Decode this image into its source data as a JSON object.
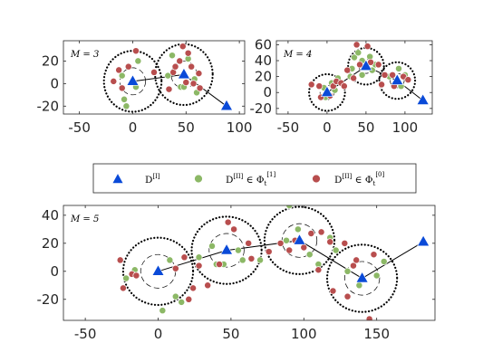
{
  "legend": {
    "items": [
      {
        "marker": "triangle",
        "color": "#0a4ad8",
        "base": "D",
        "sup": "[I]",
        "tail": "",
        "sub": "",
        "tailsup": ""
      },
      {
        "marker": "circle",
        "color": "#8cb866",
        "base": "D",
        "sup": "[II]",
        "tail": " ∈ Φ",
        "sub": "t",
        "tailsup": "[1]"
      },
      {
        "marker": "circle",
        "color": "#b84e4e",
        "base": "D",
        "sup": "[II]",
        "tail": " ∈ Φ",
        "sub": "t",
        "tailsup": "[0]"
      }
    ]
  },
  "colors": {
    "triangle": "#0a4ad8",
    "green": "#8cb866",
    "red": "#b84e4e",
    "axis": "#262626"
  },
  "chart_data": [
    {
      "type": "scatter",
      "label": "M = 3",
      "xlim": [
        -65,
        105
      ],
      "ylim": [
        -27,
        38
      ],
      "xticks": [
        -50,
        0,
        50,
        100
      ],
      "yticks": [
        -20,
        0,
        20
      ],
      "outer_radius": 27,
      "inner_radius": 12,
      "centers": [
        [
          0,
          2
        ],
        [
          48,
          8
        ],
        [
          88,
          -20
        ]
      ],
      "circled": [
        0,
        1
      ],
      "path": [
        [
          0,
          2
        ],
        [
          48,
          8
        ],
        [
          88,
          -20
        ]
      ],
      "green": [
        [
          -10,
          7
        ],
        [
          -8,
          -14
        ],
        [
          -6,
          -20
        ],
        [
          5,
          20
        ],
        [
          3,
          -3
        ],
        [
          33,
          7
        ],
        [
          37,
          25
        ],
        [
          45,
          -3
        ],
        [
          52,
          22
        ],
        [
          58,
          4
        ],
        [
          60,
          -8
        ],
        [
          48,
          -3
        ]
      ],
      "red": [
        [
          -18,
          2
        ],
        [
          -13,
          12
        ],
        [
          -10,
          -4
        ],
        [
          -4,
          15
        ],
        [
          3,
          29
        ],
        [
          20,
          10
        ],
        [
          34,
          -5
        ],
        [
          38,
          10
        ],
        [
          44,
          20
        ],
        [
          47,
          33
        ],
        [
          52,
          27
        ],
        [
          55,
          15
        ],
        [
          57,
          0
        ],
        [
          63,
          -4
        ],
        [
          62,
          9
        ],
        [
          50,
          1
        ],
        [
          40,
          15
        ]
      ]
    },
    {
      "type": "scatter",
      "label": "M = 4",
      "xlim": [
        -65,
        135
      ],
      "ylim": [
        -27,
        65
      ],
      "xticks": [
        -50,
        0,
        50,
        100
      ],
      "yticks": [
        -20,
        0,
        20,
        40,
        60
      ],
      "outer_radius": 23,
      "inner_radius": 9,
      "centers": [
        [
          0,
          0
        ],
        [
          50,
          33
        ],
        [
          90,
          15
        ],
        [
          123,
          -10
        ]
      ],
      "circled": [
        0,
        1,
        2
      ],
      "path": [
        [
          0,
          0
        ],
        [
          50,
          33
        ],
        [
          90,
          15
        ],
        [
          123,
          -10
        ]
      ],
      "green": [
        [
          -4,
          6
        ],
        [
          -2,
          -6
        ],
        [
          10,
          3
        ],
        [
          6,
          12
        ],
        [
          14,
          18
        ],
        [
          35,
          44
        ],
        [
          40,
          50
        ],
        [
          45,
          40
        ],
        [
          55,
          45
        ],
        [
          58,
          28
        ],
        [
          62,
          35
        ],
        [
          32,
          30
        ],
        [
          30,
          20
        ],
        [
          45,
          22
        ],
        [
          80,
          20
        ],
        [
          95,
          8
        ],
        [
          100,
          22
        ],
        [
          92,
          30
        ]
      ],
      "red": [
        [
          -20,
          10
        ],
        [
          -10,
          8
        ],
        [
          -8,
          -6
        ],
        [
          4,
          -4
        ],
        [
          8,
          8
        ],
        [
          12,
          14
        ],
        [
          18,
          12
        ],
        [
          22,
          8
        ],
        [
          26,
          28
        ],
        [
          34,
          18
        ],
        [
          38,
          60
        ],
        [
          42,
          35
        ],
        [
          52,
          58
        ],
        [
          56,
          38
        ],
        [
          66,
          35
        ],
        [
          70,
          10
        ],
        [
          74,
          22
        ],
        [
          84,
          22
        ],
        [
          98,
          20
        ],
        [
          104,
          16
        ],
        [
          86,
          8
        ]
      ]
    },
    {
      "type": "scatter",
      "label": "M = 5",
      "xlim": [
        -65,
        190
      ],
      "ylim": [
        -35,
        47
      ],
      "xticks": [
        -50,
        0,
        50,
        100,
        150
      ],
      "yticks": [
        -20,
        0,
        20,
        40
      ],
      "outer_radius": 24,
      "inner_radius": 12,
      "centers": [
        [
          0,
          0
        ],
        [
          47,
          15
        ],
        [
          97,
          22
        ],
        [
          140,
          -5
        ],
        [
          182,
          21
        ]
      ],
      "circled": [
        0,
        1,
        2,
        3
      ],
      "path": [
        [
          0,
          0
        ],
        [
          47,
          15
        ],
        [
          97,
          22
        ],
        [
          140,
          -5
        ],
        [
          182,
          21
        ]
      ],
      "green": [
        [
          -22,
          -5
        ],
        [
          -16,
          1
        ],
        [
          8,
          8
        ],
        [
          12,
          -18
        ],
        [
          16,
          -22
        ],
        [
          3,
          -28
        ],
        [
          28,
          10
        ],
        [
          37,
          18
        ],
        [
          40,
          5
        ],
        [
          45,
          5
        ],
        [
          55,
          15
        ],
        [
          58,
          8
        ],
        [
          62,
          20
        ],
        [
          70,
          8
        ],
        [
          88,
          22
        ],
        [
          90,
          47
        ],
        [
          96,
          30
        ],
        [
          104,
          12
        ],
        [
          110,
          5
        ],
        [
          118,
          24
        ],
        [
          122,
          15
        ],
        [
          130,
          0
        ],
        [
          138,
          -10
        ],
        [
          150,
          -3
        ],
        [
          155,
          7
        ]
      ],
      "red": [
        [
          -26,
          8
        ],
        [
          -18,
          -2
        ],
        [
          -24,
          -12
        ],
        [
          -15,
          -3
        ],
        [
          12,
          2
        ],
        [
          18,
          10
        ],
        [
          21,
          -20
        ],
        [
          24,
          -12
        ],
        [
          28,
          4
        ],
        [
          34,
          -10
        ],
        [
          42,
          5
        ],
        [
          48,
          35
        ],
        [
          52,
          30
        ],
        [
          62,
          20
        ],
        [
          64,
          9
        ],
        [
          76,
          14
        ],
        [
          84,
          20
        ],
        [
          90,
          15
        ],
        [
          94,
          22
        ],
        [
          100,
          17
        ],
        [
          105,
          27
        ],
        [
          110,
          1
        ],
        [
          118,
          21
        ],
        [
          120,
          -14
        ],
        [
          128,
          20
        ],
        [
          130,
          -18
        ],
        [
          134,
          4
        ],
        [
          145,
          -34
        ],
        [
          148,
          12
        ],
        [
          136,
          8
        ],
        [
          112,
          28
        ]
      ]
    }
  ]
}
